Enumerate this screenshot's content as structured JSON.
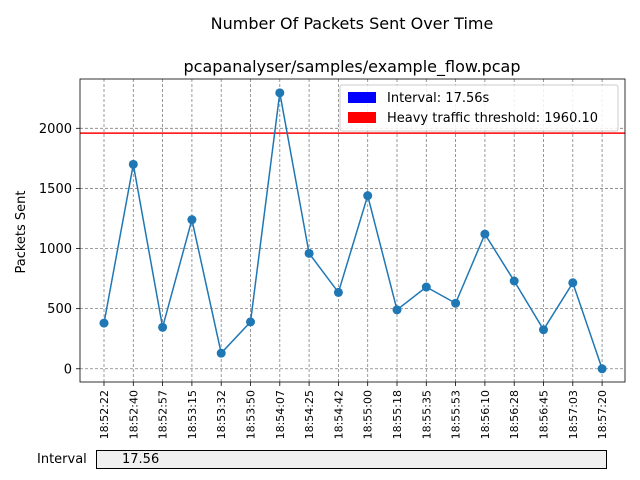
{
  "figure": {
    "suptitle": "Number Of Packets Sent Over Time"
  },
  "chart_data": {
    "type": "line",
    "title": "pcapanalyser/samples/example_flow.pcap",
    "xlabel": "",
    "ylabel": "Packets Sent",
    "categories": [
      "18:52:22",
      "18:52:40",
      "18:52:57",
      "18:53:15",
      "18:53:32",
      "18:53:50",
      "18:54:07",
      "18:54:25",
      "18:54:42",
      "18:55:00",
      "18:55:18",
      "18:55:35",
      "18:55:53",
      "18:56:10",
      "18:56:28",
      "18:56:45",
      "18:57:03",
      "18:57:20"
    ],
    "series": [
      {
        "values": [
          380,
          1700,
          345,
          1240,
          130,
          390,
          2295,
          960,
          635,
          1440,
          490,
          680,
          545,
          1120,
          730,
          325,
          715,
          0
        ],
        "color": "#1f77b4",
        "marker": "circle"
      }
    ],
    "threshold": {
      "value": 1960.1,
      "color": "#ff0000"
    },
    "ylim": [
      -110,
      2410
    ],
    "yticks": [
      0,
      500,
      1000,
      1500,
      2000
    ],
    "grid": true,
    "grid_style": "dashed",
    "legend_position": "top-right",
    "legend": [
      {
        "label": "Interval: 17.56s",
        "color": "#0000ff"
      },
      {
        "label": "Heavy traffic threshold: 1960.10",
        "color": "#ff0000"
      }
    ]
  },
  "controls": {
    "interval_label": "Interval",
    "interval_value": "17.56"
  }
}
